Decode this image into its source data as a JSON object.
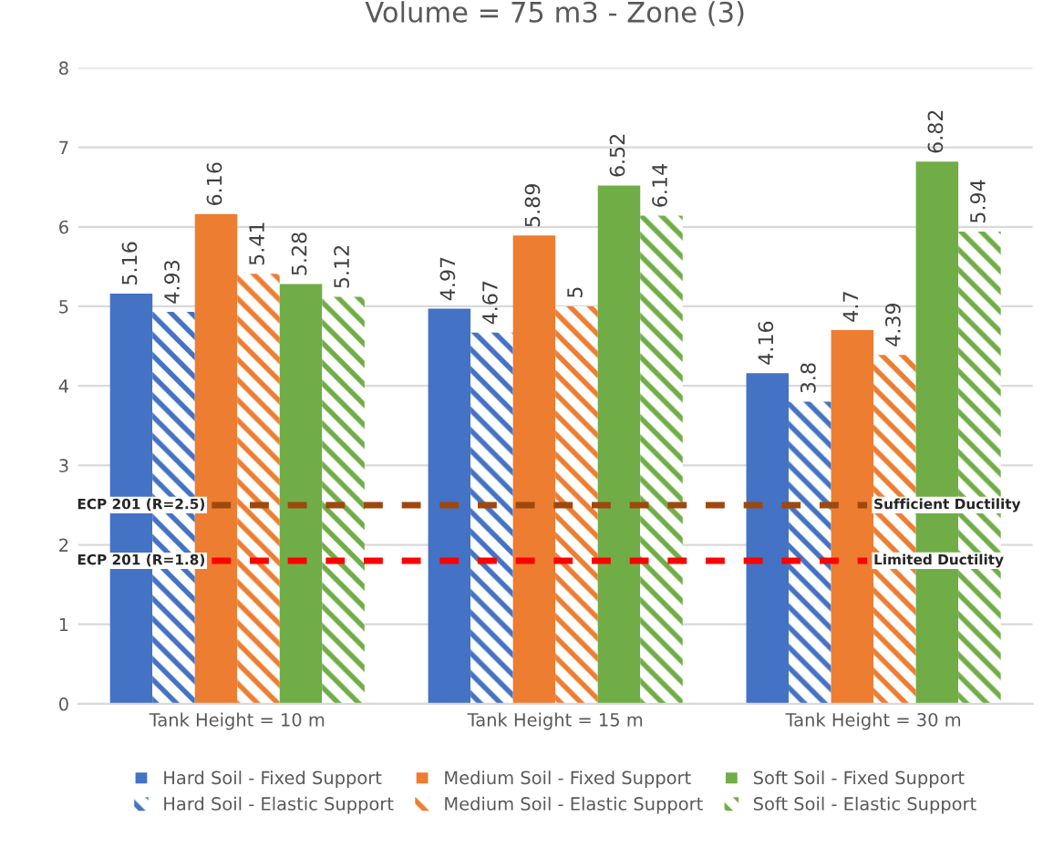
{
  "chart_data": {
    "type": "bar",
    "title": "Volume = 75 m3 - Zone (3)",
    "categories": [
      "Tank Height = 10 m",
      "Tank Height = 15 m",
      "Tank Height = 30 m"
    ],
    "series": [
      {
        "name": "Hard Soil - Fixed Support",
        "color": "#4472c4",
        "values": [
          5.16,
          4.97,
          4.16
        ]
      },
      {
        "name": "Hard Soil - Elastic Support",
        "color": "#4472c4",
        "values": [
          4.93,
          4.67,
          3.8
        ]
      },
      {
        "name": "Medium Soil - Fixed Support",
        "color": "#ed7d31",
        "values": [
          6.16,
          5.89,
          4.7
        ]
      },
      {
        "name": "Medium Soil - Elastic Support",
        "color": "#ed7d31",
        "values": [
          5.41,
          5,
          4.39
        ]
      },
      {
        "name": "Soft Soil - Fixed Support",
        "color": "#70ad47",
        "values": [
          5.28,
          6.52,
          6.82
        ]
      },
      {
        "name": "Soft Soil - Elastic Support",
        "color": "#70ad47",
        "values": [
          5.12,
          6.14,
          5.94
        ]
      }
    ],
    "ylim": [
      0,
      8
    ],
    "yticks": [
      0,
      1,
      2,
      3,
      4,
      5,
      6,
      7,
      8
    ],
    "grid": "y",
    "legend": "bottom",
    "data_labels": true,
    "ref_lines": [
      {
        "axis": "y",
        "value": 2.5,
        "label": "ECP 201 (R=2.5)",
        "color": "#9e480e",
        "line_style": "dashed"
      },
      {
        "axis": "y",
        "value": 1.8,
        "label": "ECP 201 (R=1.8)",
        "color": "#ff0000",
        "line_style": "dashed"
      }
    ],
    "annotations": [
      "Sufficient Ductility",
      "Limited Ductility"
    ]
  }
}
